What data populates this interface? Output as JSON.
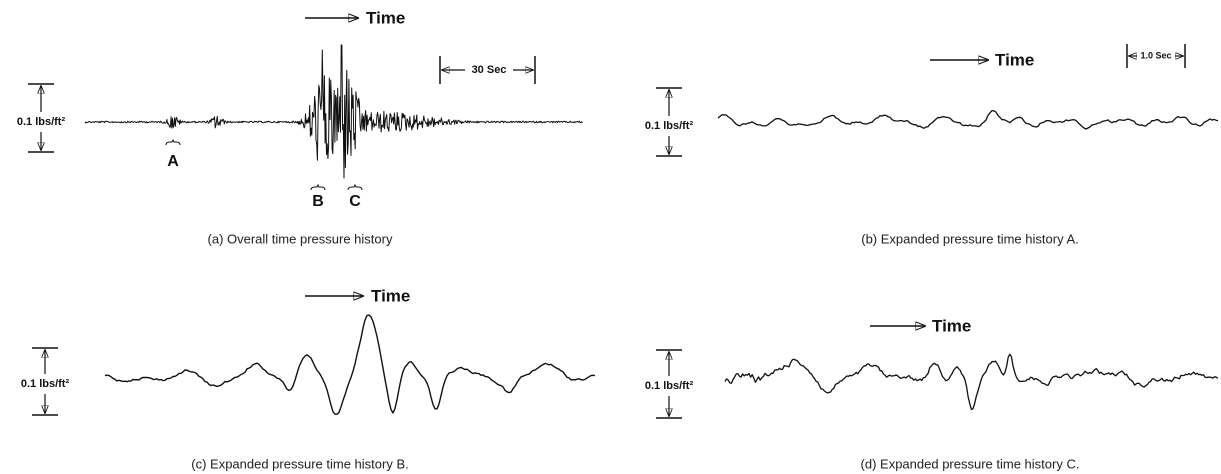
{
  "panels": [
    {
      "caption": "(a) Overall time pressure history",
      "time_label": "Time",
      "scale_label": "0.1 lbs/ft²",
      "duration_label": "30 Sec",
      "markers": [
        "A",
        "B",
        "C"
      ]
    },
    {
      "caption": "(b) Expanded pressure time history A.",
      "time_label": "Time",
      "scale_label": "0.1 lbs/ft²",
      "duration_label": "1.0 Sec"
    },
    {
      "caption": "(c) Expanded pressure time history B.",
      "time_label": "Time",
      "scale_label": "0.1 lbs/ft²"
    },
    {
      "caption": "(d) Expanded pressure time history C.",
      "time_label": "Time",
      "scale_label": "0.1 lbs/ft²"
    }
  ]
}
